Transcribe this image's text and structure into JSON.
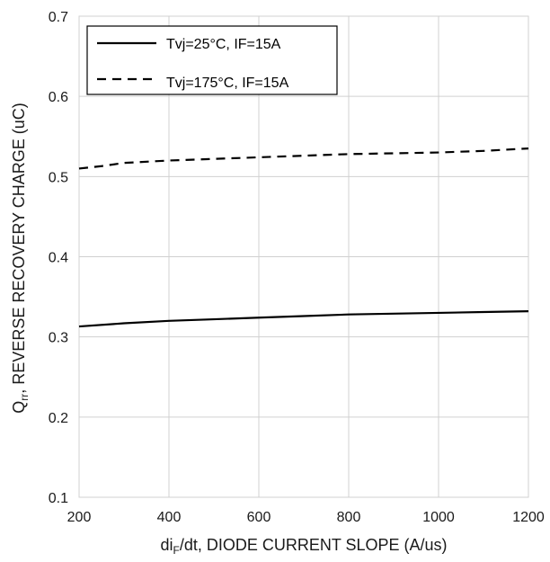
{
  "chart_data": {
    "type": "line",
    "xlabel_parts": [
      "di",
      "F",
      "/dt, DIODE CURRENT SLOPE (A/us)"
    ],
    "ylabel_parts": [
      "Q",
      "rr",
      ", REVERSE RECOVERY CHARGE (uC)"
    ],
    "xlim": [
      200,
      1200
    ],
    "ylim": [
      0.1,
      0.7
    ],
    "xticks": [
      "200",
      "400",
      "600",
      "800",
      "1000",
      "1200"
    ],
    "yticks": [
      "0.1",
      "0.2",
      "0.3",
      "0.4",
      "0.5",
      "0.6",
      "0.7"
    ],
    "grid": true,
    "legend_position": "top-left",
    "series": [
      {
        "name": "Tvj=25°C, IF=15A",
        "style": "solid",
        "color": "#000000",
        "x": [
          200,
          300,
          400,
          500,
          600,
          700,
          800,
          900,
          1000,
          1100,
          1200
        ],
        "y": [
          0.313,
          0.317,
          0.32,
          0.322,
          0.324,
          0.326,
          0.328,
          0.329,
          0.33,
          0.331,
          0.332
        ]
      },
      {
        "name": "Tvj=175°C, IF=15A",
        "style": "dashed",
        "color": "#000000",
        "x": [
          200,
          250,
          300,
          400,
          500,
          600,
          700,
          800,
          900,
          1000,
          1100,
          1200
        ],
        "y": [
          0.51,
          0.513,
          0.517,
          0.52,
          0.522,
          0.524,
          0.526,
          0.528,
          0.529,
          0.53,
          0.532,
          0.535
        ]
      }
    ]
  }
}
